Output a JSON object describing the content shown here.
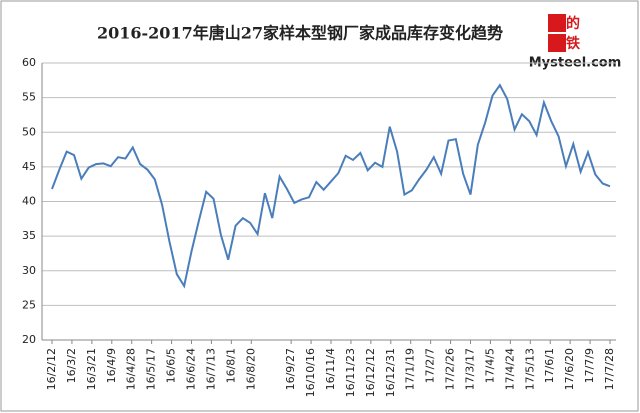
{
  "chart_data": {
    "type": "line",
    "title": "2016-2017年唐山27家样本型钢厂家成品库存变化趋势",
    "logo": {
      "rows": [
        "我的",
        "钢铁"
      ],
      "site": "Mysteel.com"
    },
    "x": [
      "2016-02-12",
      "2016-02-19",
      "2016-02-26",
      "2016-03-04",
      "2016-03-11",
      "2016-03-18",
      "2016-03-25",
      "2016-04-01",
      "2016-04-08",
      "2016-04-15",
      "2016-04-22",
      "2016-04-29",
      "2016-05-06",
      "2016-05-13",
      "2016-05-20",
      "2016-05-27",
      "2016-06-03",
      "2016-06-10",
      "2016-06-17",
      "2016-06-24",
      "2016-07-01",
      "2016-07-08",
      "2016-07-15",
      "2016-07-22",
      "2016-07-29",
      "2016-08-05",
      "2016-08-12",
      "2016-08-19",
      "2016-08-26",
      "2016-09-02",
      "2016-09-09",
      "2016-09-16",
      "2016-09-23",
      "2016-09-30",
      "2016-10-07",
      "2016-10-14",
      "2016-10-21",
      "2016-10-28",
      "2016-11-04",
      "2016-11-11",
      "2016-11-18",
      "2016-11-25",
      "2016-12-02",
      "2016-12-09",
      "2016-12-16",
      "2016-12-23",
      "2016-12-30",
      "2017-01-06",
      "2017-01-13",
      "2017-01-20",
      "2017-01-27",
      "2017-02-03",
      "2017-02-10",
      "2017-02-17",
      "2017-02-24",
      "2017-03-03",
      "2017-03-10",
      "2017-03-17",
      "2017-03-24",
      "2017-03-31",
      "2017-04-07",
      "2017-04-14",
      "2017-04-21",
      "2017-04-28",
      "2017-05-05",
      "2017-05-12",
      "2017-05-19",
      "2017-05-26",
      "2017-06-02",
      "2017-06-09",
      "2017-06-16",
      "2017-06-23",
      "2017-06-30",
      "2017-07-07",
      "2017-07-14",
      "2017-07-21",
      "2017-07-28"
    ],
    "series": [
      {
        "color": "#4a7ebb",
        "values": [
          41.8,
          44.6,
          47.2,
          46.7,
          43.3,
          44.9,
          45.4,
          45.5,
          45.1,
          46.4,
          46.2,
          47.8,
          45.4,
          44.6,
          43.2,
          39.5,
          34.2,
          29.5,
          27.8,
          32.8,
          37.2,
          41.4,
          40.4,
          35.2,
          31.6,
          36.5,
          37.6,
          36.9,
          35.3,
          41.2,
          37.6,
          43.6,
          41.8,
          39.8,
          40.3,
          40.6,
          42.8,
          41.7,
          42.9,
          44.1,
          46.6,
          46.0,
          47.0,
          44.5,
          45.6,
          45.0,
          50.8,
          47.2,
          41.0,
          41.6,
          43.2,
          44.6,
          46.4,
          44.0,
          48.8,
          49.0,
          44.0,
          41.0,
          48.2,
          51.4,
          55.3,
          56.8,
          54.8,
          50.4,
          52.6,
          51.6,
          49.6,
          54.3,
          51.6,
          49.4,
          45.1,
          48.3,
          44.3,
          47.1,
          43.9,
          42.6,
          42.2
        ]
      }
    ],
    "xlim": [
      "2016-02-12",
      "2017-07-28"
    ],
    "xticks": [
      {
        "value": "2016-02-12",
        "label": "16/2/12"
      },
      {
        "value": "2016-03-02",
        "label": "16/3/2"
      },
      {
        "value": "2016-03-21",
        "label": "16/3/21"
      },
      {
        "value": "2016-04-09",
        "label": "16/4/9"
      },
      {
        "value": "2016-04-28",
        "label": "16/4/28"
      },
      {
        "value": "2016-05-17",
        "label": "16/5/17"
      },
      {
        "value": "2016-06-05",
        "label": "16/6/5"
      },
      {
        "value": "2016-06-24",
        "label": "16/6/24"
      },
      {
        "value": "2016-07-13",
        "label": "16/7/13"
      },
      {
        "value": "2016-08-01",
        "label": "16/8/1"
      },
      {
        "value": "2016-08-20",
        "label": "16/8/20"
      },
      {
        "value": "2016-09-27",
        "label": "16/9/27"
      },
      {
        "value": "2016-10-16",
        "label": "16/10/16"
      },
      {
        "value": "2016-11-04",
        "label": "16/11/4"
      },
      {
        "value": "2016-11-23",
        "label": "16/11/23"
      },
      {
        "value": "2016-12-12",
        "label": "16/12/12"
      },
      {
        "value": "2016-12-31",
        "label": "16/12/31"
      },
      {
        "value": "2017-01-19",
        "label": "17/1/19"
      },
      {
        "value": "2017-02-07",
        "label": "17/2/7"
      },
      {
        "value": "2017-02-26",
        "label": "17/2/26"
      },
      {
        "value": "2017-03-17",
        "label": "17/3/17"
      },
      {
        "value": "2017-04-05",
        "label": "17/4/5"
      },
      {
        "value": "2017-04-24",
        "label": "17/4/24"
      },
      {
        "value": "2017-05-13",
        "label": "17/5/13"
      },
      {
        "value": "2017-06-01",
        "label": "17/6/1"
      },
      {
        "value": "2017-06-20",
        "label": "17/6/20"
      },
      {
        "value": "2017-07-09",
        "label": "17/7/9"
      },
      {
        "value": "2017-07-28",
        "label": "17/7/28"
      }
    ],
    "ylim": [
      20,
      60
    ],
    "yticks": [
      20,
      25,
      30,
      35,
      40,
      45,
      50,
      55,
      60
    ],
    "grid": true
  }
}
